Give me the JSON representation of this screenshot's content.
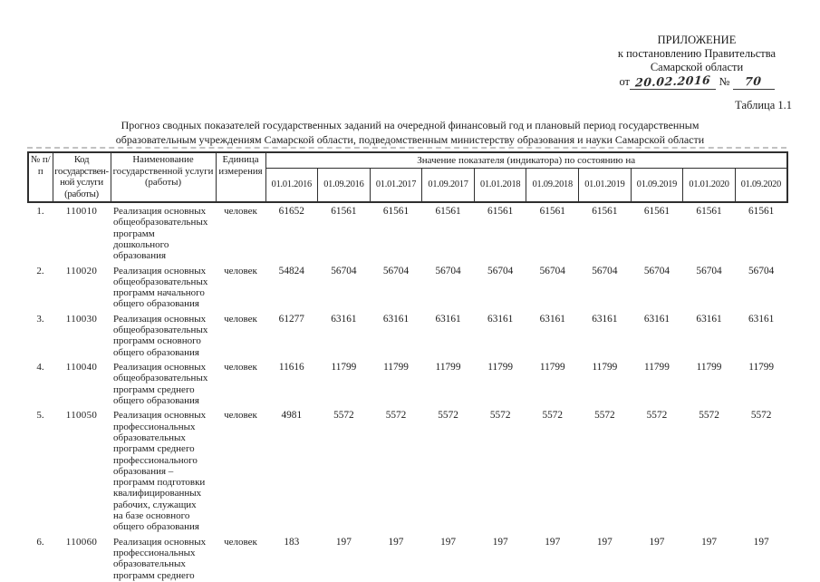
{
  "appendix": {
    "line1": "ПРИЛОЖЕНИЕ",
    "line2": "к постановлению Правительства",
    "line3": "Самарской области",
    "date_prefix": "от",
    "date_value": "20.02.2016",
    "number_sign": "№",
    "number_value": "70"
  },
  "table_label": "Таблица 1.1",
  "title": {
    "line1": "Прогноз сводных показателей государственных заданий на очередной финансовый год и плановый период государственным",
    "line2": "образовательным учреждениям Самарской области, подведомственным министерству образования и науки Самарской области"
  },
  "table": {
    "headers": {
      "num": "№ п/п",
      "code": "Код государствен-ной услуги (работы)",
      "name": "Наименование государственной услуги (работы)",
      "unit": "Единица измерения",
      "values_group": "Значение показателя (индикатора) по состоянию на",
      "dates": [
        "01.01.2016",
        "01.09.2016",
        "01.01.2017",
        "01.09.2017",
        "01.01.2018",
        "01.09.2018",
        "01.01.2019",
        "01.09.2019",
        "01.01.2020",
        "01.09.2020"
      ]
    },
    "rows": [
      {
        "num": "1.",
        "code": "110010",
        "name": "Реализация основных общеобразовательных программ дошкольного образования",
        "unit": "человек",
        "values": [
          "61652",
          "61561",
          "61561",
          "61561",
          "61561",
          "61561",
          "61561",
          "61561",
          "61561",
          "61561"
        ]
      },
      {
        "num": "2.",
        "code": "110020",
        "name": "Реализация основных общеобразовательных программ начального общего образования",
        "unit": "человек",
        "values": [
          "54824",
          "56704",
          "56704",
          "56704",
          "56704",
          "56704",
          "56704",
          "56704",
          "56704",
          "56704"
        ]
      },
      {
        "num": "3.",
        "code": "110030",
        "name": "Реализация основных общеобразовательных программ основного общего образования",
        "unit": "человек",
        "values": [
          "61277",
          "63161",
          "63161",
          "63161",
          "63161",
          "63161",
          "63161",
          "63161",
          "63161",
          "63161"
        ]
      },
      {
        "num": "4.",
        "code": "110040",
        "name": "Реализация основных общеобразовательных программ среднего общего образования",
        "unit": "человек",
        "values": [
          "11616",
          "11799",
          "11799",
          "11799",
          "11799",
          "11799",
          "11799",
          "11799",
          "11799",
          "11799"
        ]
      },
      {
        "num": "5.",
        "code": "110050",
        "name": "Реализация основных профессиональных образовательных программ среднего профессионального образования – программ подготовки квалифицированных рабочих, служащих на базе основного общего образования",
        "unit": "человек",
        "values": [
          "4981",
          "5572",
          "5572",
          "5572",
          "5572",
          "5572",
          "5572",
          "5572",
          "5572",
          "5572"
        ]
      },
      {
        "num": "6.",
        "code": "110060",
        "name": "Реализация основных профессиональных образовательных программ среднего",
        "unit": "человек",
        "values": [
          "183",
          "197",
          "197",
          "197",
          "197",
          "197",
          "197",
          "197",
          "197",
          "197"
        ]
      }
    ]
  }
}
